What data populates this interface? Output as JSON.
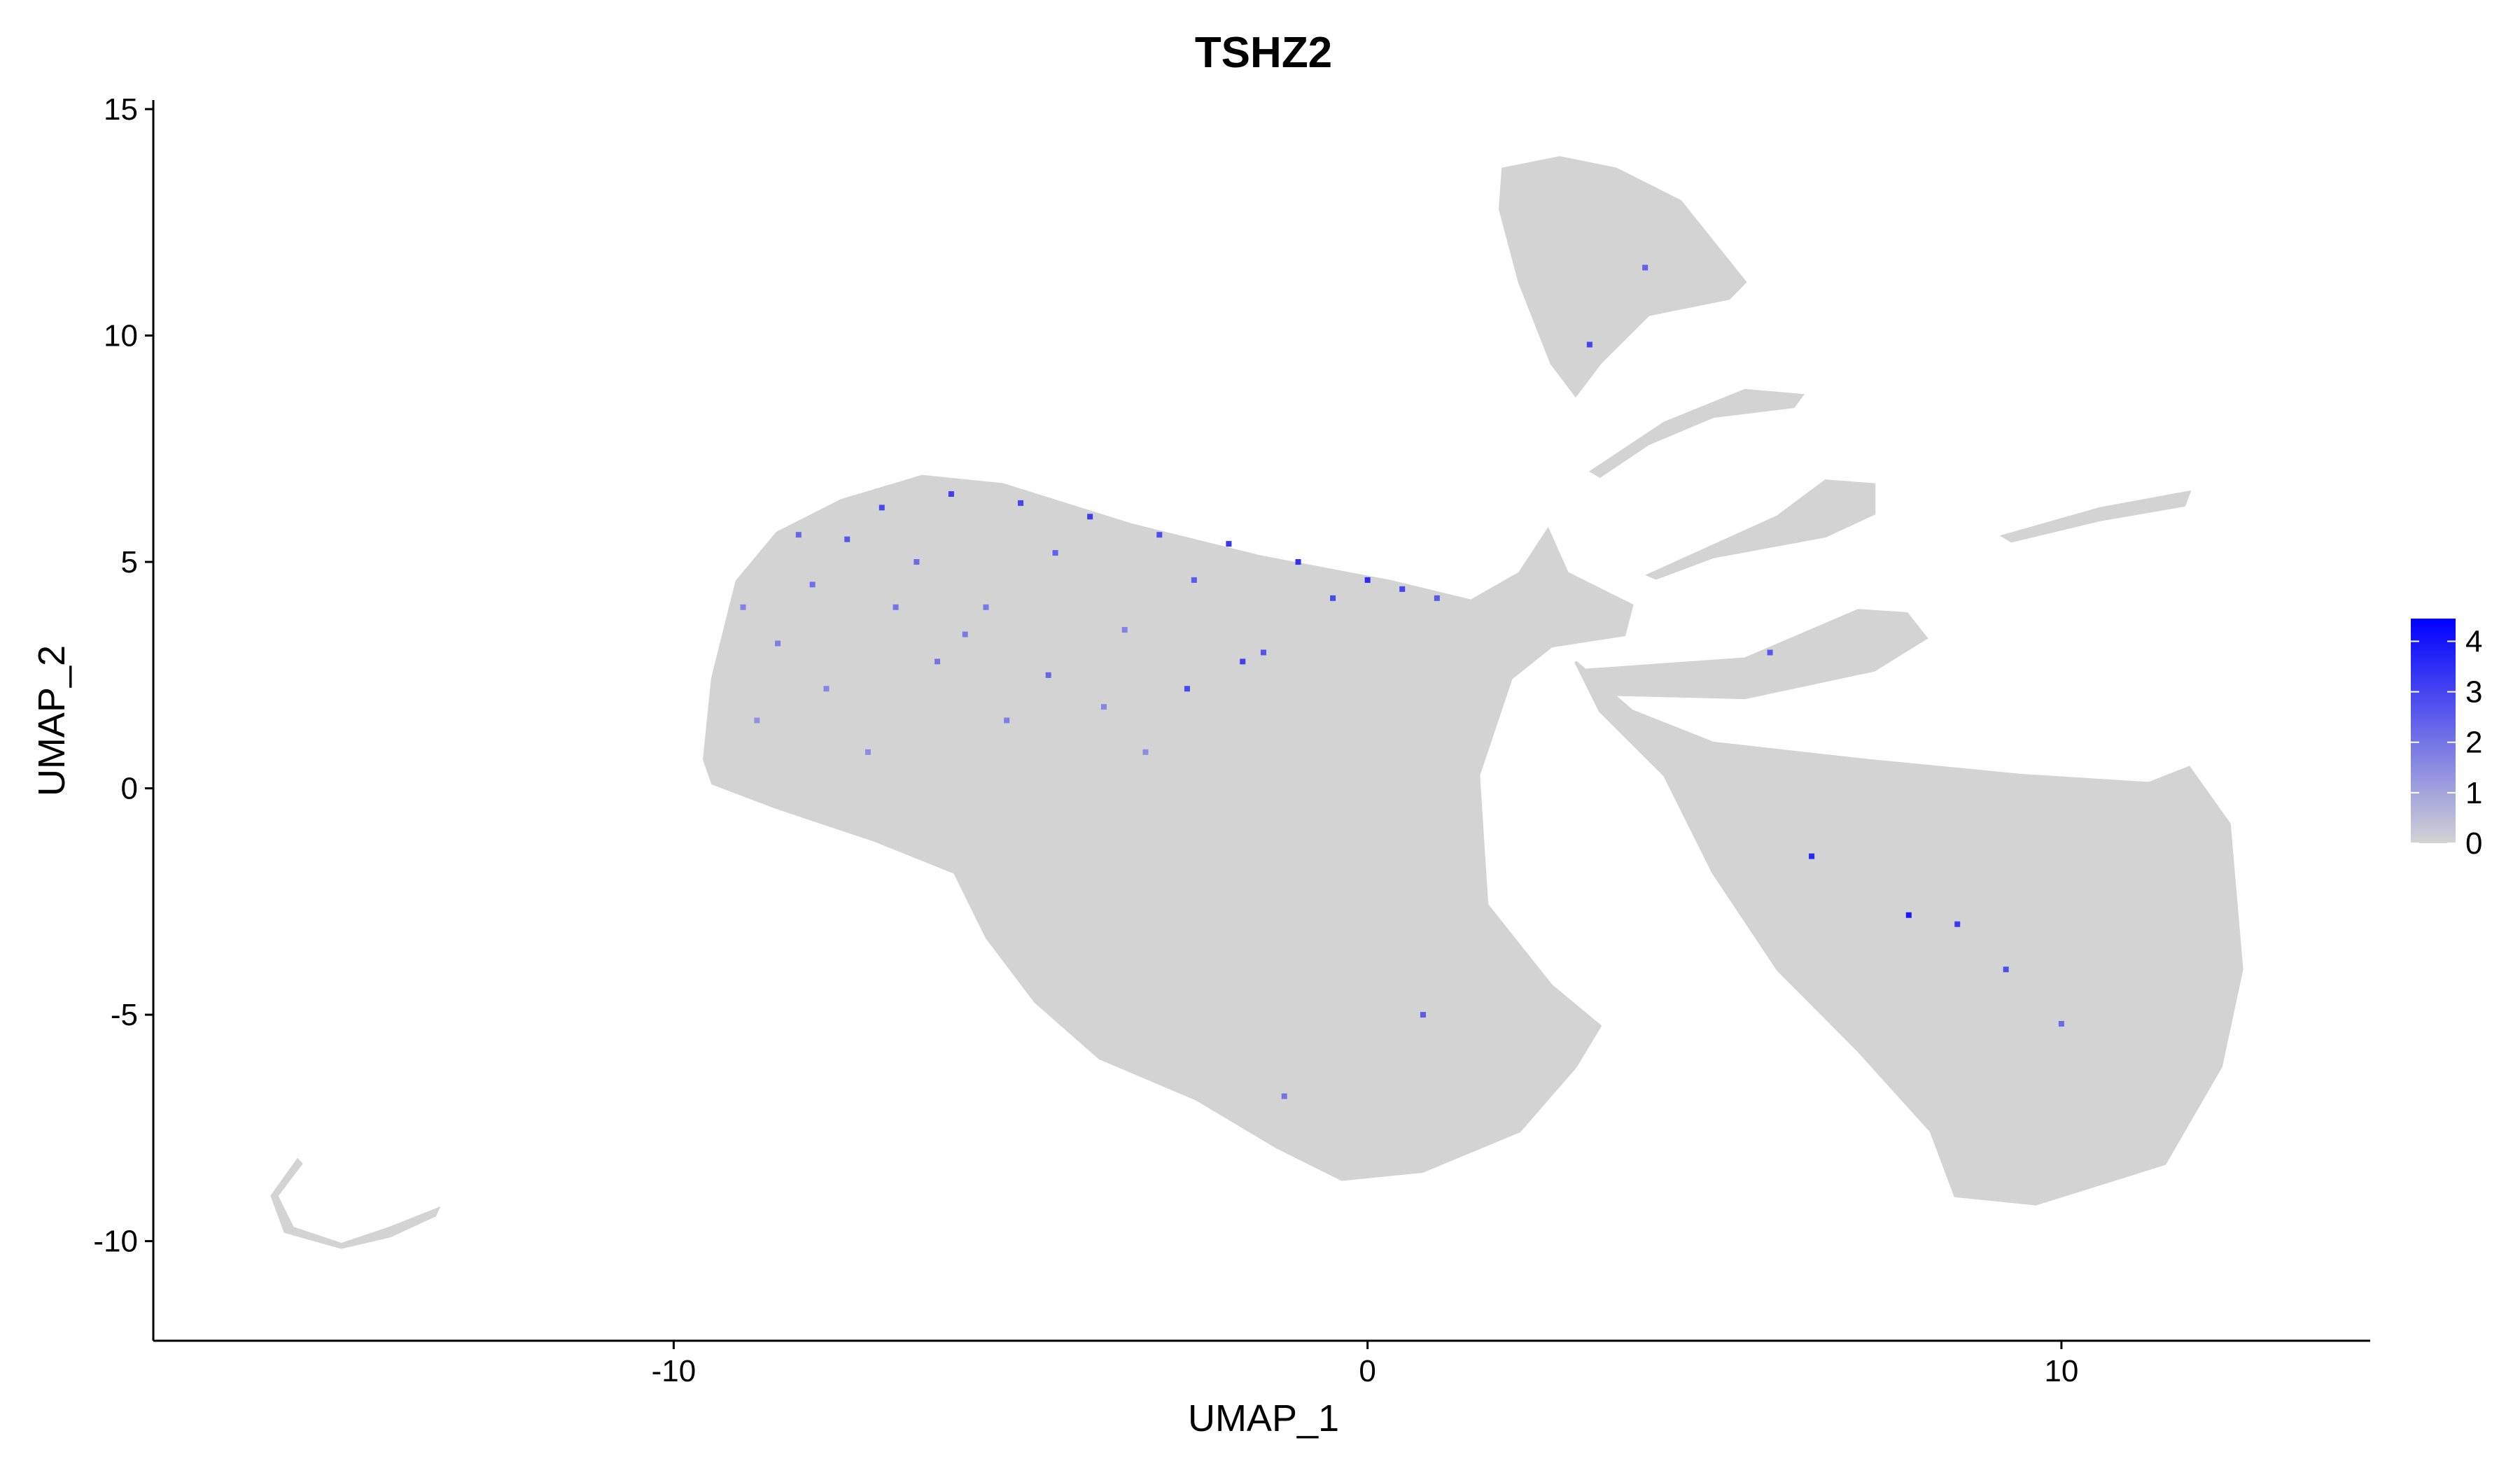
{
  "chart_data": {
    "type": "scatter",
    "title": "TSHZ2",
    "x_label": "UMAP_1",
    "y_label": "UMAP_2",
    "xlim": [
      -17.5,
      14.45
    ],
    "ylim": [
      -12.2,
      15.2
    ],
    "xticks": [
      -10,
      0,
      10
    ],
    "yticks": [
      -10,
      -5,
      0,
      5,
      10,
      15
    ],
    "base_color": "#d3d3d3",
    "colorscale": [
      "#d3d3d3",
      "#0000ff"
    ],
    "color_lim": [
      0,
      4.45
    ],
    "color_ticks": [
      0,
      1,
      2,
      3,
      4
    ],
    "regions": [
      {
        "x": [
          -9.56,
          -9.44,
          -9.09,
          -8.51,
          -7.58,
          -6.42,
          -5.26,
          -3.4,
          -1.53,
          0.33,
          1.49,
          2.19,
          2.6,
          2.88,
          3.81,
          3.7,
          2.65,
          2.07,
          1.6,
          1.72,
          2.65,
          3.35,
          3.0,
          2.19,
          0.79,
          -0.37,
          -1.3,
          -2.47,
          -3.86,
          -4.79,
          -5.49,
          -5.95,
          -7.12,
          -8.51,
          -9.44
        ],
        "y": [
          0.64,
          2.43,
          4.57,
          5.64,
          6.36,
          6.89,
          6.71,
          5.82,
          5.11,
          4.57,
          4.14,
          4.75,
          5.71,
          4.75,
          4.04,
          3.39,
          3.14,
          2.43,
          0.29,
          -2.57,
          -4.36,
          -5.25,
          -6.14,
          -7.57,
          -8.46,
          -8.64,
          -7.93,
          -6.86,
          -5.96,
          -4.71,
          -3.29,
          -1.86,
          -1.14,
          -0.43,
          0.11
        ]
      },
      {
        "x": [
          3.0,
          3.81,
          4.98,
          7.07,
          9.4,
          11.26,
          11.84,
          12.42,
          12.6,
          12.3,
          11.49,
          9.63,
          8.47,
          8.12,
          7.07,
          5.91,
          4.98,
          4.28,
          3.35
        ],
        "y": [
          2.79,
          1.71,
          1.0,
          0.64,
          0.29,
          0.11,
          0.46,
          -0.79,
          -4.0,
          -6.14,
          -8.29,
          -9.18,
          -9.0,
          -7.57,
          -5.79,
          -4.0,
          -1.86,
          0.29,
          1.71
        ]
      },
      {
        "x": [
          1.95,
          2.77,
          3.58,
          4.51,
          5.44,
          5.21,
          4.05,
          3.35,
          3.0,
          2.65,
          2.19,
          1.91
        ],
        "y": [
          13.68,
          13.93,
          13.68,
          12.96,
          11.18,
          10.82,
          10.46,
          9.39,
          8.68,
          9.39,
          11.18,
          12.79
        ]
      },
      {
        "x": [
          3.23,
          4.28,
          5.44,
          6.26,
          6.14,
          4.98,
          4.05,
          3.35
        ],
        "y": [
          7.0,
          8.07,
          8.79,
          8.68,
          8.43,
          8.21,
          7.61,
          6.89
        ]
      },
      {
        "x": [
          4.05,
          5.91,
          6.6,
          7.3,
          7.3,
          6.6,
          4.98,
          4.16
        ],
        "y": [
          4.71,
          6.0,
          6.79,
          6.71,
          6.07,
          5.57,
          5.11,
          4.64
        ]
      },
      {
        "x": [
          3.12,
          5.44,
          7.07,
          7.77,
          8.05,
          7.3,
          5.44,
          3.58
        ],
        "y": [
          2.61,
          2.86,
          3.93,
          3.86,
          3.32,
          2.61,
          2.0,
          2.07
        ]
      },
      {
        "x": [
          9.16,
          10.56,
          11.84,
          11.77,
          10.56,
          9.28
        ],
        "y": [
          5.57,
          6.18,
          6.54,
          6.25,
          5.93,
          5.46
        ]
      },
      {
        "x": [
          -15.37,
          -15.72,
          -15.49,
          -14.79,
          -14.09,
          -13.4,
          -13.44,
          -14.09,
          -14.79,
          -15.6,
          -15.79,
          -15.42
        ],
        "y": [
          -8.29,
          -9.0,
          -9.71,
          -10.07,
          -9.71,
          -9.29,
          -9.43,
          -9.89,
          -10.14,
          -9.79,
          -9.0,
          -8.21
        ]
      }
    ],
    "points": {
      "x": [
        -8.5,
        -8.0,
        -7.5,
        -7.0,
        -6.5,
        -6.0,
        -5.5,
        -5.0,
        -4.5,
        -4.0,
        -3.5,
        -3.0,
        -2.5,
        -2.0,
        -1.5,
        -1.0,
        -0.5,
        0,
        0.5,
        1.0,
        -8.8,
        -7.8,
        -7.2,
        -6.2,
        -5.2,
        -4.6,
        -3.8,
        -2.6,
        -1.8,
        -6.8,
        -5.8,
        -9.0,
        -8.2,
        -3.2,
        0.8,
        -1.2,
        6.4,
        8.5,
        9.2,
        7.8,
        5.8,
        4.0,
        3.2,
        10.0
      ],
      "y": [
        3.2,
        4.5,
        5.5,
        6.2,
        5.0,
        6.5,
        4.0,
        6.3,
        5.2,
        6.0,
        3.5,
        5.6,
        4.6,
        5.4,
        3.0,
        5.0,
        4.2,
        4.6,
        4.4,
        4.2,
        1.5,
        2.2,
        0.8,
        2.8,
        1.5,
        2.5,
        1.8,
        2.2,
        2.8,
        4.0,
        3.4,
        4.0,
        5.6,
        0.8,
        -5.0,
        -6.8,
        -1.5,
        -3.0,
        -4.0,
        -2.8,
        3.0,
        11.5,
        9.8,
        -5.2
      ],
      "values": [
        1.8,
        2.1,
        2.6,
        2.9,
        2.2,
        3.1,
        1.9,
        3.0,
        2.4,
        3.2,
        1.7,
        2.8,
        2.5,
        3.3,
        2.7,
        3.4,
        2.9,
        3.5,
        3.0,
        2.6,
        1.4,
        1.6,
        1.5,
        2.0,
        1.8,
        2.3,
        1.6,
        2.9,
        3.1,
        2.0,
        1.9,
        1.7,
        2.3,
        1.5,
        2.5,
        2.0,
        3.6,
        3.2,
        2.8,
        3.9,
        2.6,
        2.4,
        3.0,
        2.2
      ]
    }
  }
}
